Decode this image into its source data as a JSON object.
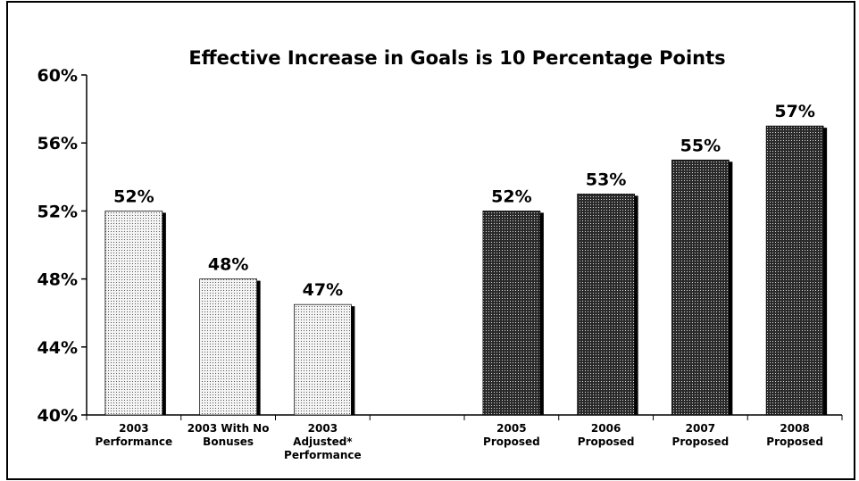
{
  "chart_data": {
    "type": "bar",
    "title": "Effective Increase in Goals is 10 Percentage Points",
    "categories": [
      "2003\nPerformance",
      "2003 With No\nBonuses",
      "2003\nAdjusted*\nPerformance",
      null,
      "2005\nProposed",
      "2006\nProposed",
      "2007\nProposed",
      "2008\nProposed"
    ],
    "values": [
      52,
      48,
      46.5,
      null,
      52,
      53,
      55,
      57
    ],
    "value_labels": [
      "52%",
      "48%",
      "47%",
      null,
      "52%",
      "53%",
      "55%",
      "57%"
    ],
    "colors": [
      "#f4f4f4",
      "#f4f4f4",
      "#f4f4f4",
      null,
      "#2a2a2a",
      "#2a2a2a",
      "#2a2a2a",
      "#2a2a2a"
    ],
    "ylim": [
      40,
      60
    ],
    "yticks": [
      {
        "value": 40,
        "label": "40%"
      },
      {
        "value": 44,
        "label": "44%"
      },
      {
        "value": 48,
        "label": "48%"
      },
      {
        "value": 52,
        "label": "52%"
      },
      {
        "value": 56,
        "label": "56%"
      },
      {
        "value": 60,
        "label": "60%"
      }
    ],
    "grid": false
  }
}
